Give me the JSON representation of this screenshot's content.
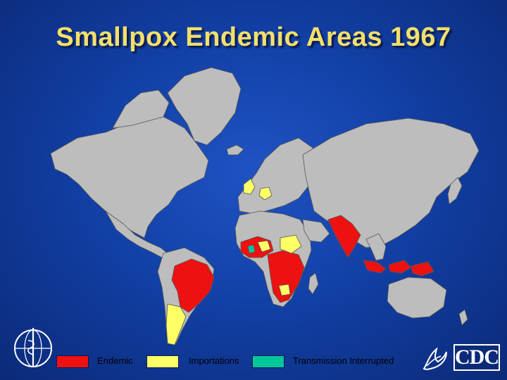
{
  "title": "Smallpox Endemic Areas 1967",
  "colors": {
    "land": "#bdbdbd",
    "border": "#555555",
    "endemic": "#ee1111",
    "importations": "#ffff66",
    "transmission_interrupted": "#00c89a"
  },
  "legend": [
    {
      "label": "Endemic",
      "color": "#ee1111"
    },
    {
      "label": "Importations",
      "color": "#ffff66"
    },
    {
      "label": "Transmission Interrupted",
      "color": "#00c89a"
    }
  ],
  "logos": {
    "who": "who-emblem-icon",
    "hhs": "hhs-eagle-icon",
    "cdc": "CDC"
  }
}
